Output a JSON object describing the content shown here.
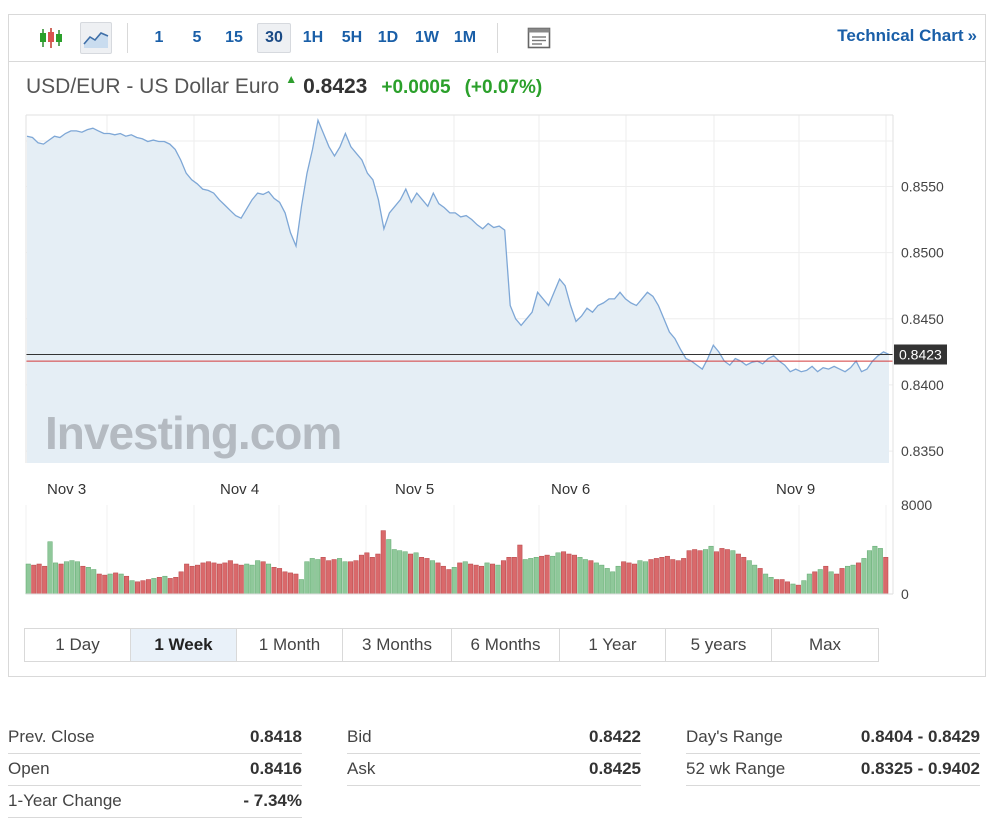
{
  "toolbar": {
    "chart_types": [
      {
        "icon": "candlestick-icon",
        "active": false
      },
      {
        "icon": "area-chart-icon",
        "active": true
      }
    ],
    "intervals": [
      {
        "label": "1",
        "active": false
      },
      {
        "label": "5",
        "active": false
      },
      {
        "label": "15",
        "active": false
      },
      {
        "label": "30",
        "active": true
      },
      {
        "label": "1H",
        "active": false
      },
      {
        "label": "5H",
        "active": false
      },
      {
        "label": "1D",
        "active": false
      },
      {
        "label": "1W",
        "active": false
      },
      {
        "label": "1M",
        "active": false
      }
    ],
    "extra_icon": "panel-icon",
    "technical_link": "Technical Chart",
    "technical_arrow": "»"
  },
  "header": {
    "name": "USD/EUR - US Dollar Euro",
    "direction_icon": "arrow-up-icon",
    "price": "0.8423",
    "change": "+0.0005",
    "change_pct": "(+0.07%)"
  },
  "colors": {
    "line": "#7ea7d6",
    "area": "#e5eef5",
    "vol_up": "#8fc89a",
    "vol_down": "#d9696b",
    "current_price_line": "#333333",
    "prev_close_line": "#d43a3a",
    "accent": "#1a5fa8",
    "positive": "#2ba02b"
  },
  "chart_data": {
    "type": "area",
    "watermark": "Investing.com",
    "x_tick_labels": [
      "Nov 3",
      "Nov 4",
      "Nov 5",
      "Nov 6",
      "Nov 9"
    ],
    "y_tick_labels": [
      "0.8550",
      "0.8500",
      "0.8450",
      "0.8400",
      "0.8350"
    ],
    "y_ticks": [
      0.855,
      0.85,
      0.845,
      0.84,
      0.835
    ],
    "ylim": [
      0.8341,
      0.8604
    ],
    "current_price": 0.8423,
    "current_price_label": "0.8423",
    "prev_close": 0.8418,
    "series": [
      {
        "values": [
          0.8588,
          0.8587,
          0.8583,
          0.8582,
          0.8585,
          0.8588,
          0.8587,
          0.859,
          0.8592,
          0.8592,
          0.8591,
          0.8593,
          0.8594,
          0.8592,
          0.859,
          0.859,
          0.8589,
          0.859,
          0.8588,
          0.8589,
          0.8587,
          0.8586,
          0.8584,
          0.8585,
          0.8584,
          0.8584,
          0.8582,
          0.8578,
          0.857,
          0.856,
          0.8555,
          0.8552,
          0.8548,
          0.8547,
          0.8545,
          0.854,
          0.8536,
          0.8532,
          0.8528,
          0.8526,
          0.8533,
          0.854,
          0.8545,
          0.8544,
          0.8546,
          0.8541,
          0.8538,
          0.853,
          0.8515,
          0.8505,
          0.8535,
          0.856,
          0.8578,
          0.86,
          0.859,
          0.858,
          0.8573,
          0.858,
          0.859,
          0.858,
          0.8575,
          0.857,
          0.856,
          0.8555,
          0.854,
          0.8518,
          0.853,
          0.8535,
          0.854,
          0.8548,
          0.8538,
          0.8545,
          0.854,
          0.8535,
          0.8545,
          0.8537,
          0.8534,
          0.853,
          0.853,
          0.8527,
          0.8528,
          0.8525,
          0.8521,
          0.8518,
          0.8522,
          0.8519,
          0.852,
          0.8517,
          0.846,
          0.845,
          0.8445,
          0.845,
          0.8455,
          0.847,
          0.8465,
          0.846,
          0.847,
          0.848,
          0.8475,
          0.846,
          0.8448,
          0.8452,
          0.8458,
          0.8455,
          0.846,
          0.8462,
          0.8465,
          0.8465,
          0.847,
          0.8465,
          0.8462,
          0.846,
          0.8465,
          0.847,
          0.8467,
          0.846,
          0.845,
          0.844,
          0.8435,
          0.8427,
          0.842,
          0.8418,
          0.8415,
          0.8412,
          0.842,
          0.843,
          0.8425,
          0.8418,
          0.8415,
          0.842,
          0.8418,
          0.8415,
          0.8417,
          0.8418,
          0.8416,
          0.842,
          0.8422,
          0.8418,
          0.8415,
          0.841,
          0.8412,
          0.841,
          0.8411,
          0.8414,
          0.841,
          0.8413,
          0.8412,
          0.8414,
          0.8412,
          0.841,
          0.8413,
          0.8418,
          0.841,
          0.8412,
          0.8418,
          0.8422,
          0.8425,
          0.8423
        ]
      }
    ],
    "volume": {
      "y_tick_labels": [
        "8000",
        "0"
      ],
      "y_ticks": [
        8000,
        0
      ],
      "ylim": [
        0,
        8000
      ],
      "values": [
        2700,
        2600,
        2700,
        2500,
        4700,
        2800,
        2700,
        2900,
        3000,
        2900,
        2500,
        2400,
        2200,
        1800,
        1700,
        1800,
        1900,
        1800,
        1600,
        1200,
        1100,
        1200,
        1300,
        1400,
        1500,
        1600,
        1400,
        1500,
        2000,
        2700,
        2500,
        2600,
        2800,
        2900,
        2800,
        2700,
        2800,
        3000,
        2700,
        2600,
        2700,
        2600,
        3000,
        2900,
        2700,
        2400,
        2300,
        2000,
        1900,
        1800,
        1300,
        2900,
        3200,
        3100,
        3300,
        3000,
        3100,
        3200,
        2900,
        2900,
        3000,
        3500,
        3700,
        3300,
        3600,
        5700,
        4900,
        4000,
        3900,
        3800,
        3600,
        3700,
        3300,
        3200,
        3000,
        2800,
        2500,
        2200,
        2400,
        2800,
        2900,
        2700,
        2600,
        2500,
        2800,
        2700,
        2600,
        3000,
        3300,
        3300,
        4400,
        3100,
        3200,
        3300,
        3400,
        3500,
        3400,
        3700,
        3800,
        3600,
        3500,
        3300,
        3100,
        3000,
        2800,
        2600,
        2300,
        2000,
        2500,
        2900,
        2800,
        2700,
        3000,
        2900,
        3100,
        3200,
        3300,
        3400,
        3100,
        3000,
        3200,
        3900,
        4000,
        3900,
        4000,
        4300,
        3800,
        4100,
        4000,
        3900,
        3600,
        3300,
        3000,
        2600,
        2300,
        1800,
        1500,
        1300,
        1300,
        1100,
        900,
        800,
        1200,
        1800,
        2000,
        2200,
        2500,
        2000,
        1800,
        2300,
        2500,
        2600,
        2800,
        3200,
        3900,
        4300,
        4100,
        3300
      ]
    }
  },
  "range_tabs": [
    {
      "label": "1 Day",
      "active": false
    },
    {
      "label": "1 Week",
      "active": true
    },
    {
      "label": "1 Month",
      "active": false
    },
    {
      "label": "3 Months",
      "active": false
    },
    {
      "label": "6 Months",
      "active": false
    },
    {
      "label": "1 Year",
      "active": false
    },
    {
      "label": "5 years",
      "active": false
    },
    {
      "label": "Max",
      "active": false
    }
  ],
  "stats": {
    "col1": [
      {
        "label": "Prev. Close",
        "value": "0.8418"
      },
      {
        "label": "Open",
        "value": "0.8416"
      },
      {
        "label": "1-Year Change",
        "value": "- 7.34%"
      }
    ],
    "col2": [
      {
        "label": "Bid",
        "value": "0.8422"
      },
      {
        "label": "Ask",
        "value": "0.8425"
      }
    ],
    "col3": [
      {
        "label": "Day's Range",
        "value": "0.8404 - 0.8429"
      },
      {
        "label": "52 wk Range",
        "value": "0.8325 - 0.9402"
      }
    ]
  }
}
